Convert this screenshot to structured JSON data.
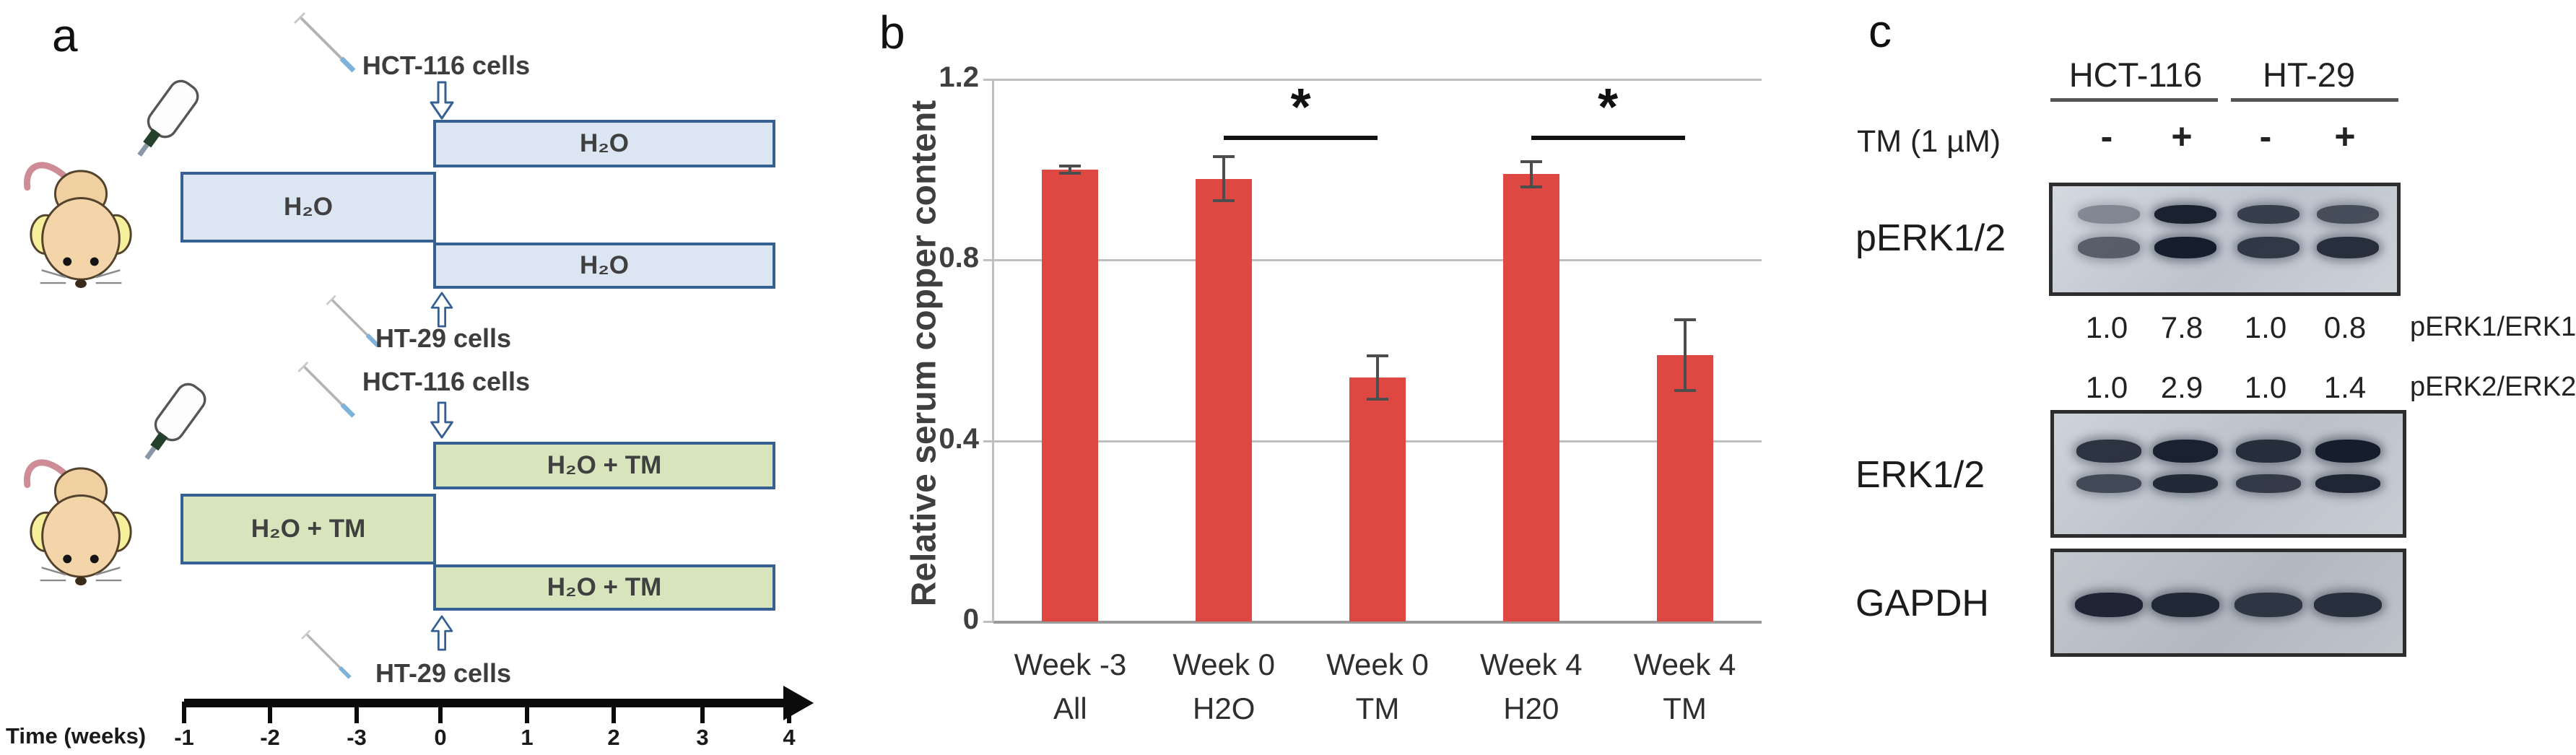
{
  "panel_a": {
    "label": "a",
    "group_water": {
      "inject_top_label": "HCT-116 cells",
      "pre_label": "H₂O",
      "branch_top_label": "H₂O",
      "branch_bottom_label": "H₂O",
      "inject_bottom_label": "HT-29 cells"
    },
    "group_tm": {
      "inject_top_label": "HCT-116 cells",
      "pre_label": "H₂O + TM",
      "branch_top_label": "H₂O + TM",
      "branch_bottom_label": "H₂O + TM",
      "inject_bottom_label": "HT-29 cells"
    },
    "time_axis": {
      "label": "Time (weeks)",
      "ticks": [
        "-1",
        "-2",
        "-3",
        "0",
        "1",
        "2",
        "3",
        "4"
      ]
    },
    "colors": {
      "water_fill": "#dce6f2",
      "tm_fill": "#d8e4bc",
      "outline": "#366092"
    }
  },
  "panel_b": {
    "label": "b"
  },
  "chart_data": {
    "type": "bar",
    "title": "",
    "xlabel": "",
    "ylabel": "Relative serum copper content",
    "ylim": [
      0,
      1.2
    ],
    "yticks": [
      0,
      0.4,
      0.8,
      1.2
    ],
    "ytick_labels": [
      "0",
      "0.4",
      "0.8",
      "1.2"
    ],
    "grid": true,
    "legend": null,
    "categories": [
      [
        "Week -3",
        "All"
      ],
      [
        "Week 0",
        "H2O"
      ],
      [
        "Week 0",
        "TM"
      ],
      [
        "Week 4",
        "H20"
      ],
      [
        "Week 4",
        "TM"
      ]
    ],
    "values": [
      1.0,
      0.98,
      0.54,
      0.99,
      0.59
    ],
    "errors": [
      0.01,
      0.05,
      0.05,
      0.03,
      0.08
    ],
    "bar_color": "#de4742",
    "error_color": "#4d4d4d",
    "grid_color": "#bfbfbf",
    "significance": [
      {
        "from": 1,
        "to": 2,
        "label": "*"
      },
      {
        "from": 3,
        "to": 4,
        "label": "*"
      }
    ]
  },
  "panel_c": {
    "label": "c",
    "cell_lines": [
      "HCT-116",
      "HT-29"
    ],
    "treatment_row": {
      "label": "TM (1 µM)",
      "values": [
        "-",
        "+",
        "-",
        "+"
      ]
    },
    "blots": [
      {
        "name": "pERK1/2",
        "lanes": [
          [
            0.4,
            0.62
          ],
          [
            0.95,
            0.97
          ],
          [
            0.78,
            0.82
          ],
          [
            0.7,
            0.88
          ]
        ]
      },
      {
        "name": "ERK1/2",
        "lanes": [
          [
            0.85,
            0.72
          ],
          [
            0.95,
            0.9
          ],
          [
            0.88,
            0.8
          ],
          [
            0.97,
            0.92
          ]
        ]
      },
      {
        "name": "GAPDH",
        "lanes": [
          [
            0.92
          ],
          [
            0.9
          ],
          [
            0.82
          ],
          [
            0.86
          ]
        ]
      }
    ],
    "ratios": [
      {
        "values": [
          "1.0",
          "7.8",
          "1.0",
          "0.8"
        ],
        "label": "pERK1/ERK1"
      },
      {
        "values": [
          "1.0",
          "2.9",
          "1.0",
          "1.4"
        ],
        "label": "pERK2/ERK2"
      }
    ]
  }
}
